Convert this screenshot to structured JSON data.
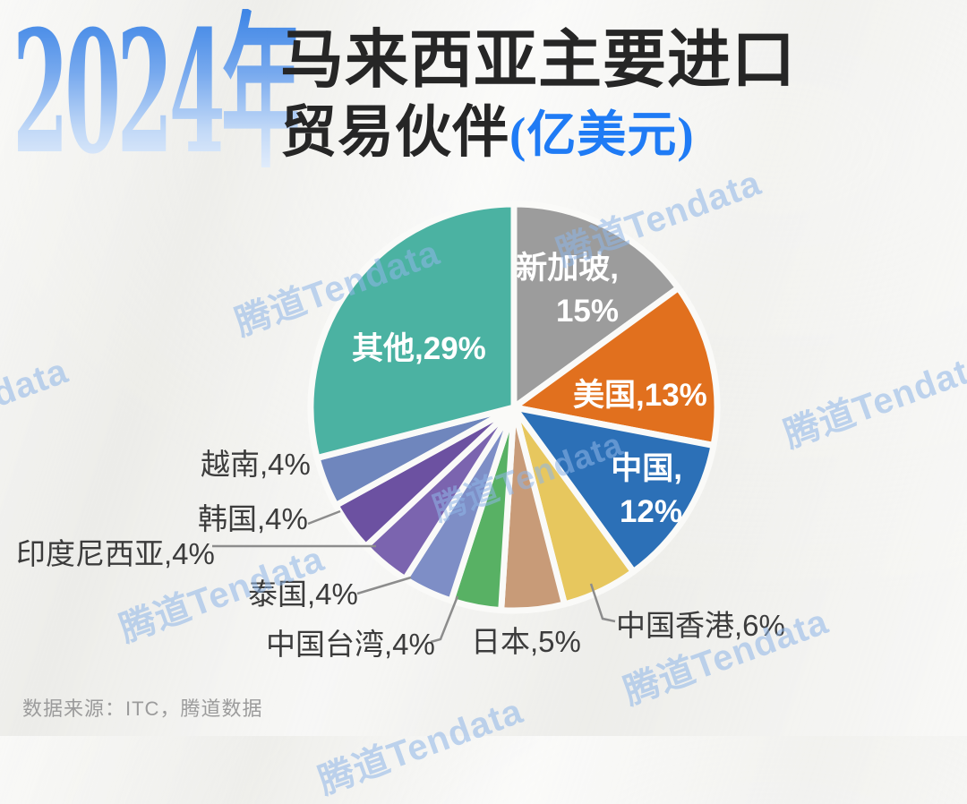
{
  "header": {
    "year": "2024年",
    "title_line1": "马来西亚主要进口",
    "title_line2": "贸易伙伴",
    "title_unit": "(亿美元)"
  },
  "chart_data": {
    "type": "pie",
    "title": "2024年马来西亚主要进口贸易伙伴(亿美元)",
    "value_format": "percent",
    "start_angle_deg": 0,
    "direction": "clockwise",
    "categories": [
      "新加坡",
      "美国",
      "中国",
      "中国香港",
      "日本",
      "中国台湾",
      "泰国",
      "印度尼西亚",
      "韩国",
      "越南",
      "其他"
    ],
    "values": [
      15,
      13,
      12,
      6,
      5,
      4,
      4,
      4,
      4,
      4,
      29
    ],
    "colors": [
      "#9C9C9C",
      "#E1701E",
      "#2C70B7",
      "#E7C75E",
      "#C89B78",
      "#58B164",
      "#7E8EC6",
      "#7B64AF",
      "#6C51A1",
      "#6F86BD",
      "#4BB2A2"
    ],
    "labels": [
      "新加坡, 15%",
      "美国,13%",
      "中国, 12%",
      "中国香港,6%",
      "日本,5%",
      "中国台湾,4%",
      "泰国,4%",
      "印度尼西亚,4%",
      "韩国,4%",
      "越南,4%",
      "其他,29%"
    ],
    "legend_position": "none",
    "grid": false
  },
  "slice_labels": {
    "others": "其他,29%",
    "singapore_line1": "新加坡,",
    "singapore_line2": "15%",
    "usa": "美国,13%",
    "china_line1": "中国,",
    "china_line2": "12%",
    "hongkong": "中国香港,6%",
    "japan": "日本,5%",
    "taiwan": "中国台湾,4%",
    "thailand": "泰国,4%",
    "indonesia": "印度尼西亚,4%",
    "korea": "韩国,4%",
    "vietnam": "越南,4%"
  },
  "watermark": {
    "text": "腾道Tendata",
    "color": "#8FB6E8"
  },
  "footer": {
    "source": "数据来源：ITC，腾道数据"
  },
  "colors": {
    "accent_blue": "#1F7BF5",
    "title_text": "#262626",
    "outer_label": "#3C3C3C",
    "leader_line": "#8C8C8C",
    "background": "#F3F3F0",
    "slice_gap": "#FAFAF8"
  }
}
